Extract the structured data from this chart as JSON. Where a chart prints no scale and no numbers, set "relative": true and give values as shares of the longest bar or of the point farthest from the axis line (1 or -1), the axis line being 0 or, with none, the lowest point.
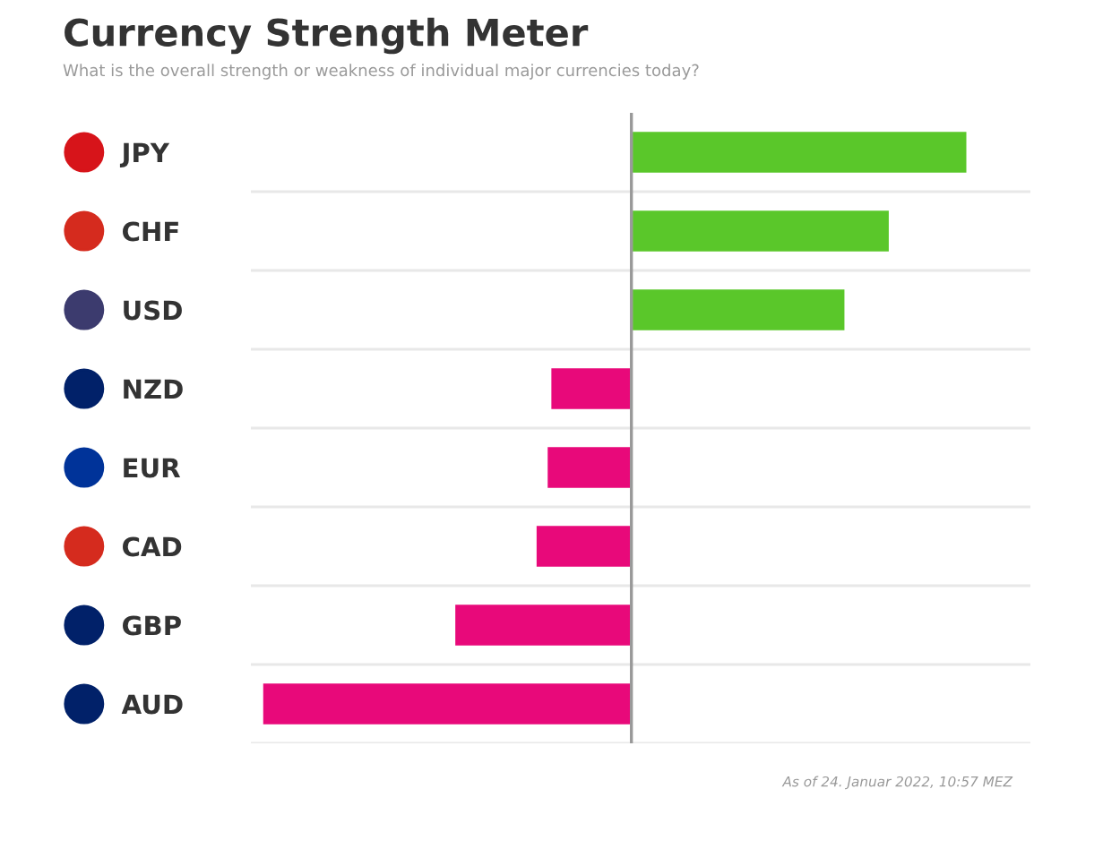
{
  "chart_data": {
    "type": "bar",
    "orientation": "horizontal",
    "relative": true,
    "title": "Currency Strength Meter",
    "subtitle": "What is the overall strength or weakness of individual major currencies today?",
    "categories": [
      "JPY",
      "CHF",
      "USD",
      "NZD",
      "EUR",
      "CAD",
      "GBP",
      "AUD"
    ],
    "values": [
      0.91,
      0.7,
      0.58,
      -0.22,
      -0.23,
      -0.26,
      -0.48,
      -1
    ],
    "colors": [
      "#5ac72a",
      "#5ac72a",
      "#5ac72a",
      "#e8097a",
      "#e8097a",
      "#e8097a",
      "#e8097a",
      "#e8097a"
    ],
    "grid": "y",
    "annotations": [
      "As of 24. Januar 2022, 10:57 MEZ"
    ]
  }
}
